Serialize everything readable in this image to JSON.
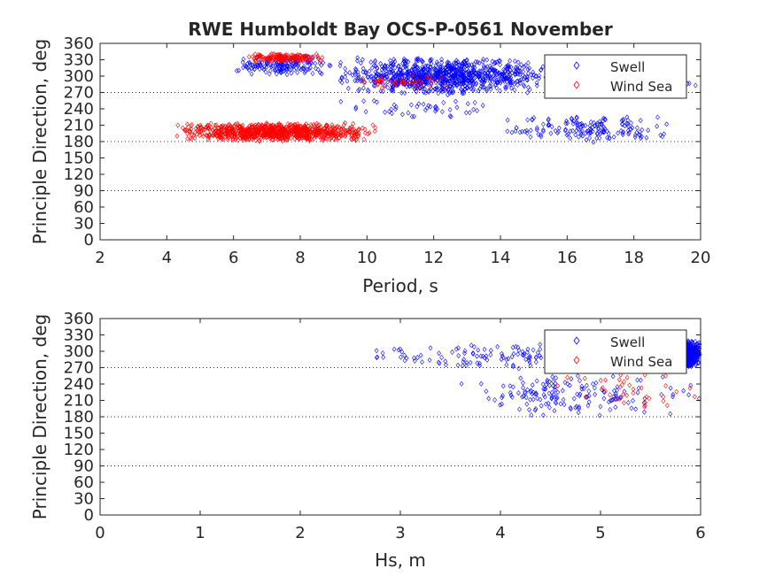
{
  "figure": {
    "title": "RWE Humboldt Bay OCS-P-0561 November"
  },
  "chart_data": [
    {
      "type": "scatter",
      "xlabel": "Period, s",
      "ylabel": "Principle Direction, deg",
      "xlim": [
        2,
        20
      ],
      "ylim": [
        0,
        360
      ],
      "xticks": [
        2,
        4,
        6,
        8,
        10,
        12,
        14,
        16,
        18,
        20
      ],
      "yticks": [
        0,
        30,
        60,
        90,
        120,
        150,
        180,
        210,
        240,
        270,
        300,
        330,
        360
      ],
      "reference_lines": [
        90,
        180,
        270
      ],
      "legend_position": "top-right",
      "series": [
        {
          "name": "Swell",
          "color": "#0000ff",
          "marker": "diamond",
          "clusters": [
            {
              "x_range": [
                9,
                15.5
              ],
              "y_range": [
                265,
                335
              ],
              "density": "high"
            },
            {
              "x_range": [
                6,
                9
              ],
              "y_range": [
                300,
                340
              ],
              "density": "medium"
            },
            {
              "x_range": [
                15,
                20
              ],
              "y_range": [
                270,
                310
              ],
              "density": "medium"
            },
            {
              "x_range": [
                9,
                14
              ],
              "y_range": [
                220,
                265
              ],
              "density": "low"
            },
            {
              "x_range": [
                14,
                19.5
              ],
              "y_range": [
                178,
                230
              ],
              "density": "medium"
            }
          ]
        },
        {
          "name": "Wind Sea",
          "color": "#ff0000",
          "marker": "diamond",
          "clusters": [
            {
              "x_range": [
                4.2,
                10.3
              ],
              "y_range": [
                180,
                215
              ],
              "density": "high"
            },
            {
              "x_range": [
                6.2,
                8.8
              ],
              "y_range": [
                325,
                342
              ],
              "density": "medium"
            },
            {
              "x_range": [
                9.5,
                13
              ],
              "y_range": [
                275,
                305
              ],
              "density": "low"
            }
          ]
        }
      ]
    },
    {
      "type": "scatter",
      "xlabel": "Hs, m",
      "ylabel": "Principle Direction, deg",
      "xlim": [
        0,
        6
      ],
      "ylim": [
        0,
        360
      ],
      "xticks": [
        0,
        1,
        2,
        3,
        4,
        5,
        6
      ],
      "yticks": [
        0,
        30,
        60,
        90,
        120,
        150,
        180,
        210,
        240,
        270,
        300,
        330,
        360
      ],
      "reference_lines": [
        90,
        180,
        270
      ],
      "legend_position": "top-right",
      "series": [
        {
          "name": "Swell",
          "color": "#0000ff",
          "marker": "diamond",
          "clusters": [
            {
              "x_range": [
                2.6,
                6
              ],
              "y_range": [
                265,
                315
              ],
              "density": "medium"
            },
            {
              "x_range": [
                3.5,
                6
              ],
              "y_range": [
                180,
                260
              ],
              "density": "medium"
            },
            {
              "x_range": [
                5.7,
                6
              ],
              "y_range": [
                270,
                320
              ],
              "density": "high"
            }
          ]
        },
        {
          "name": "Wind Sea",
          "color": "#ff0000",
          "marker": "diamond",
          "clusters": [
            {
              "x_range": [
                4.5,
                6
              ],
              "y_range": [
                185,
                300
              ],
              "density": "low"
            }
          ]
        }
      ]
    }
  ]
}
